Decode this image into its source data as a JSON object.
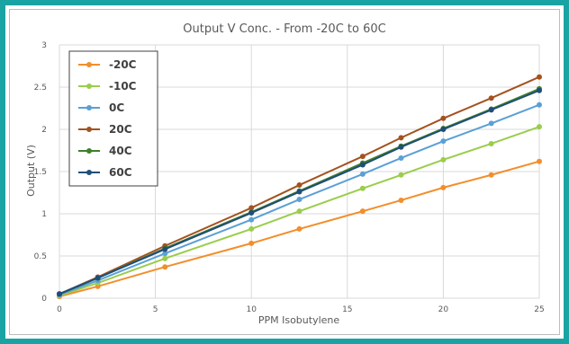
{
  "chart_data": {
    "type": "line",
    "title": "Output V Conc. - From -20C to 60C",
    "xlabel": "PPM Isobutylene",
    "ylabel": "Output (V)",
    "xlim": [
      0,
      25
    ],
    "ylim": [
      0,
      3
    ],
    "x_ticks": [
      "0",
      "5",
      "10",
      "15",
      "20",
      "25"
    ],
    "y_ticks": [
      "0",
      "0.5",
      "1",
      "1.5",
      "2",
      "2.5",
      "3"
    ],
    "grid": true,
    "legend_position": "top-left",
    "series": [
      {
        "name": "-20C",
        "color": "#f28e2b",
        "x": [
          0,
          2,
          5.5,
          10,
          12.5,
          15.8,
          17.8,
          20,
          22.5,
          25
        ],
        "y": [
          0.02,
          0.14,
          0.37,
          0.65,
          0.82,
          1.03,
          1.16,
          1.31,
          1.46,
          1.62
        ]
      },
      {
        "name": "-10C",
        "color": "#9acd4c",
        "x": [
          0,
          2,
          5.5,
          10,
          12.5,
          15.8,
          17.8,
          20,
          22.5,
          25
        ],
        "y": [
          0.03,
          0.18,
          0.47,
          0.82,
          1.03,
          1.3,
          1.46,
          1.64,
          1.83,
          2.03
        ]
      },
      {
        "name": "0C",
        "color": "#5aa0d6",
        "x": [
          0,
          2,
          5.5,
          10,
          12.5,
          15.8,
          17.8,
          20,
          22.5,
          25
        ],
        "y": [
          0.04,
          0.21,
          0.53,
          0.93,
          1.17,
          1.47,
          1.66,
          1.86,
          2.07,
          2.29
        ]
      },
      {
        "name": "20C",
        "color": "#a3521f",
        "x": [
          0,
          2,
          5.5,
          10,
          12.5,
          15.8,
          17.8,
          20,
          22.5,
          25
        ],
        "y": [
          0.05,
          0.25,
          0.62,
          1.07,
          1.34,
          1.68,
          1.9,
          2.13,
          2.37,
          2.62
        ]
      },
      {
        "name": "40C",
        "color": "#3f7f2a",
        "x": [
          0,
          2,
          5.5,
          10,
          12.5,
          15.8,
          17.8,
          20,
          22.5,
          25
        ],
        "y": [
          0.05,
          0.24,
          0.59,
          1.02,
          1.27,
          1.6,
          1.8,
          2.01,
          2.24,
          2.48
        ]
      },
      {
        "name": "60C",
        "color": "#1f4e79",
        "x": [
          0,
          2,
          5.5,
          10,
          12.5,
          15.8,
          17.8,
          20,
          22.5,
          25
        ],
        "y": [
          0.05,
          0.24,
          0.58,
          1.01,
          1.26,
          1.58,
          1.79,
          2.0,
          2.23,
          2.46
        ]
      }
    ]
  }
}
